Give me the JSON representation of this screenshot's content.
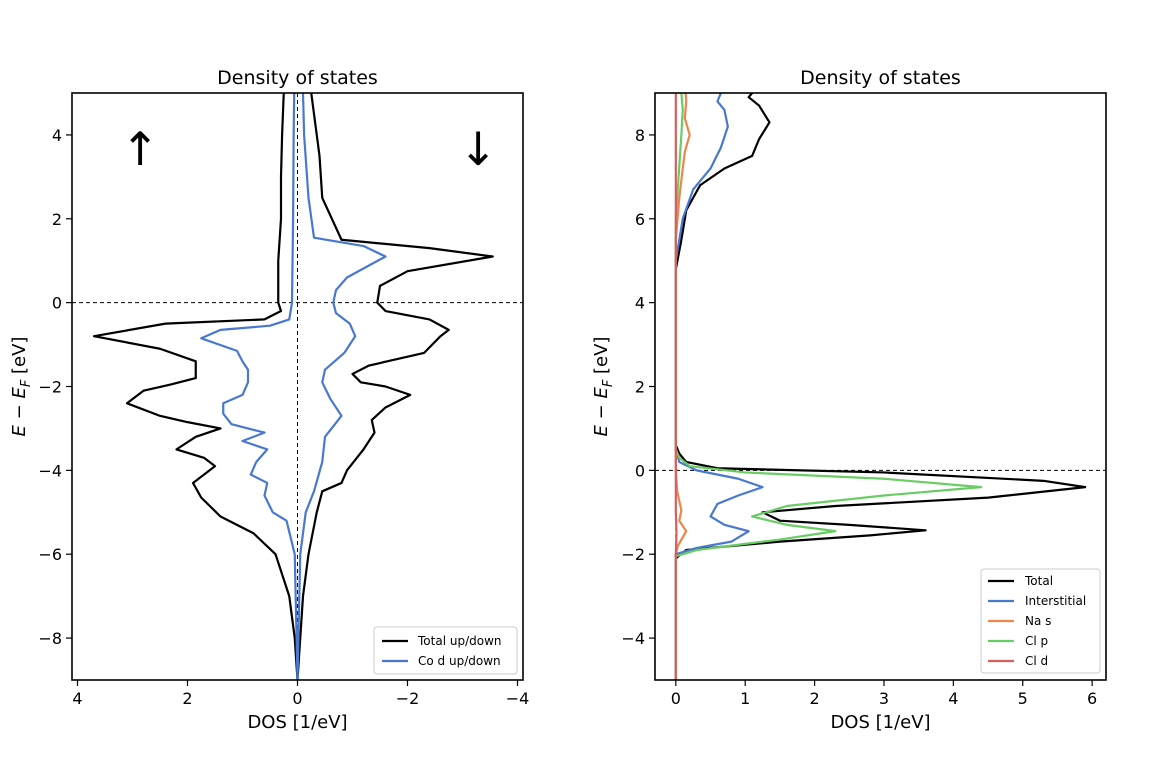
{
  "chart_data": [
    {
      "type": "line",
      "title": "Density of states",
      "xlabel": "DOS [1/eV]",
      "ylabel": "E − E_F [eV]",
      "ylabel_main": "E − E",
      "ylabel_sub": "F",
      "ylabel_tail": " [eV]",
      "xlim": [
        4.1,
        -4.1
      ],
      "ylim": [
        -9,
        5
      ],
      "xticks": [
        4,
        2,
        0,
        -2,
        -4
      ],
      "xtick_labels": [
        "4",
        "2",
        "0",
        "−2",
        "−4"
      ],
      "yticks": [
        -8,
        -6,
        -4,
        -2,
        0,
        2,
        4
      ],
      "ytick_labels": [
        "−8",
        "−6",
        "−4",
        "−2",
        "0",
        "2",
        "4"
      ],
      "annotations": {
        "up": "↑",
        "down": "↓"
      },
      "legend_position": "lower-right",
      "series": [
        {
          "name": "Total up/down",
          "color": "#000000",
          "up": [
            [
              0.0,
              -9.0
            ],
            [
              0.05,
              -8.0
            ],
            [
              0.15,
              -7.0
            ],
            [
              0.4,
              -6.0
            ],
            [
              0.8,
              -5.5
            ],
            [
              1.4,
              -5.1
            ],
            [
              1.75,
              -4.65
            ],
            [
              1.9,
              -4.3
            ],
            [
              1.65,
              -4.05
            ],
            [
              1.5,
              -3.9
            ],
            [
              1.7,
              -3.7
            ],
            [
              2.2,
              -3.5
            ],
            [
              1.85,
              -3.2
            ],
            [
              1.4,
              -3.0
            ],
            [
              2.0,
              -2.85
            ],
            [
              2.5,
              -2.7
            ],
            [
              3.1,
              -2.4
            ],
            [
              2.8,
              -2.1
            ],
            [
              2.3,
              -1.95
            ],
            [
              1.85,
              -1.8
            ],
            [
              1.85,
              -1.4
            ],
            [
              2.5,
              -1.1
            ],
            [
              3.7,
              -0.8
            ],
            [
              2.4,
              -0.5
            ],
            [
              0.6,
              -0.4
            ],
            [
              0.3,
              -0.2
            ],
            [
              0.35,
              0.0
            ],
            [
              0.35,
              1.0
            ],
            [
              0.3,
              2.0
            ],
            [
              0.3,
              3.0
            ],
            [
              0.28,
              4.0
            ],
            [
              0.25,
              5.0
            ]
          ],
          "down": [
            [
              0.0,
              -9.0
            ],
            [
              -0.05,
              -8.0
            ],
            [
              -0.1,
              -7.0
            ],
            [
              -0.2,
              -6.0
            ],
            [
              -0.35,
              -5.0
            ],
            [
              -0.45,
              -4.5
            ],
            [
              -0.8,
              -4.3
            ],
            [
              -0.9,
              -4.0
            ],
            [
              -1.2,
              -3.5
            ],
            [
              -1.4,
              -3.1
            ],
            [
              -1.35,
              -2.8
            ],
            [
              -1.6,
              -2.5
            ],
            [
              -2.05,
              -2.2
            ],
            [
              -1.6,
              -2.0
            ],
            [
              -1.15,
              -1.9
            ],
            [
              -1.0,
              -1.7
            ],
            [
              -1.3,
              -1.5
            ],
            [
              -2.3,
              -1.2
            ],
            [
              -2.6,
              -0.8
            ],
            [
              -2.75,
              -0.65
            ],
            [
              -2.4,
              -0.4
            ],
            [
              -1.6,
              -0.2
            ],
            [
              -1.45,
              0.0
            ],
            [
              -1.5,
              0.4
            ],
            [
              -2.0,
              0.75
            ],
            [
              -3.55,
              1.1
            ],
            [
              -2.4,
              1.3
            ],
            [
              -0.8,
              1.5
            ],
            [
              -0.45,
              2.5
            ],
            [
              -0.4,
              3.5
            ],
            [
              -0.3,
              4.5
            ],
            [
              -0.25,
              5.0
            ]
          ]
        },
        {
          "name": "Co d up/down",
          "color": "#4878cf",
          "up": [
            [
              0.0,
              -9.0
            ],
            [
              0.05,
              -6.0
            ],
            [
              0.2,
              -5.2
            ],
            [
              0.45,
              -5.0
            ],
            [
              0.6,
              -4.6
            ],
            [
              0.55,
              -4.3
            ],
            [
              0.85,
              -4.1
            ],
            [
              0.75,
              -3.8
            ],
            [
              0.55,
              -3.5
            ],
            [
              1.0,
              -3.3
            ],
            [
              0.6,
              -3.1
            ],
            [
              1.2,
              -2.9
            ],
            [
              1.35,
              -2.65
            ],
            [
              1.35,
              -2.4
            ],
            [
              1.0,
              -2.2
            ],
            [
              0.9,
              -1.9
            ],
            [
              0.9,
              -1.6
            ],
            [
              1.0,
              -1.4
            ],
            [
              1.1,
              -1.15
            ],
            [
              1.75,
              -0.85
            ],
            [
              1.4,
              -0.65
            ],
            [
              0.5,
              -0.55
            ],
            [
              0.15,
              -0.4
            ],
            [
              0.1,
              0.0
            ],
            [
              0.08,
              2.0
            ],
            [
              0.07,
              4.0
            ],
            [
              0.06,
              5.0
            ]
          ],
          "down": [
            [
              0.0,
              -9.0
            ],
            [
              -0.05,
              -6.0
            ],
            [
              -0.15,
              -5.0
            ],
            [
              -0.3,
              -4.5
            ],
            [
              -0.45,
              -3.8
            ],
            [
              -0.5,
              -3.2
            ],
            [
              -0.8,
              -2.7
            ],
            [
              -0.6,
              -2.3
            ],
            [
              -0.45,
              -1.9
            ],
            [
              -0.5,
              -1.6
            ],
            [
              -0.85,
              -1.2
            ],
            [
              -1.05,
              -0.8
            ],
            [
              -0.95,
              -0.5
            ],
            [
              -0.7,
              -0.25
            ],
            [
              -0.65,
              0.0
            ],
            [
              -0.7,
              0.3
            ],
            [
              -0.9,
              0.6
            ],
            [
              -1.6,
              1.1
            ],
            [
              -1.2,
              1.35
            ],
            [
              -0.3,
              1.55
            ],
            [
              -0.2,
              2.5
            ],
            [
              -0.12,
              4.0
            ],
            [
              -0.1,
              5.0
            ]
          ]
        }
      ]
    },
    {
      "type": "line",
      "title": "Density of states",
      "xlabel": "DOS [1/eV]",
      "ylabel": "E − E_F [eV]",
      "ylabel_main": "E − E",
      "ylabel_sub": "F",
      "ylabel_tail": " [eV]",
      "xlim": [
        -0.3,
        6.2
      ],
      "ylim": [
        -5,
        9
      ],
      "xticks": [
        0,
        1,
        2,
        3,
        4,
        5,
        6
      ],
      "xtick_labels": [
        "0",
        "1",
        "2",
        "3",
        "4",
        "5",
        "6"
      ],
      "yticks": [
        -4,
        -2,
        0,
        2,
        4,
        6,
        8
      ],
      "ytick_labels": [
        "−4",
        "−2",
        "0",
        "2",
        "4",
        "6",
        "8"
      ],
      "legend_position": "lower-right",
      "series": [
        {
          "name": "Total",
          "color": "#000000",
          "points": [
            [
              0.0,
              -5.0
            ],
            [
              0.0,
              -2.1
            ],
            [
              0.15,
              -1.9
            ],
            [
              1.5,
              -1.7
            ],
            [
              2.8,
              -1.55
            ],
            [
              3.6,
              -1.43
            ],
            [
              2.5,
              -1.3
            ],
            [
              1.5,
              -1.2
            ],
            [
              1.25,
              -1.0
            ],
            [
              2.3,
              -0.85
            ],
            [
              4.5,
              -0.65
            ],
            [
              5.9,
              -0.4
            ],
            [
              5.3,
              -0.25
            ],
            [
              3.0,
              -0.05
            ],
            [
              0.6,
              0.05
            ],
            [
              0.15,
              0.2
            ],
            [
              0.05,
              0.4
            ],
            [
              0.0,
              0.6
            ],
            [
              0.0,
              4.8
            ],
            [
              0.08,
              5.5
            ],
            [
              0.15,
              6.2
            ],
            [
              0.35,
              6.8
            ],
            [
              0.7,
              7.2
            ],
            [
              1.1,
              7.5
            ],
            [
              1.2,
              7.9
            ],
            [
              1.35,
              8.3
            ],
            [
              1.2,
              8.7
            ],
            [
              1.05,
              8.9
            ],
            [
              1.1,
              9.0
            ]
          ]
        },
        {
          "name": "Interstitial",
          "color": "#4878cf",
          "points": [
            [
              0.0,
              -5.0
            ],
            [
              0.0,
              -2.0
            ],
            [
              0.3,
              -1.85
            ],
            [
              0.8,
              -1.7
            ],
            [
              1.05,
              -1.45
            ],
            [
              0.7,
              -1.3
            ],
            [
              0.5,
              -1.1
            ],
            [
              0.6,
              -0.8
            ],
            [
              0.9,
              -0.6
            ],
            [
              1.25,
              -0.4
            ],
            [
              0.9,
              -0.2
            ],
            [
              0.3,
              0.0
            ],
            [
              0.05,
              0.2
            ],
            [
              0.0,
              0.5
            ],
            [
              0.0,
              5.0
            ],
            [
              0.1,
              6.0
            ],
            [
              0.25,
              6.7
            ],
            [
              0.5,
              7.2
            ],
            [
              0.65,
              7.7
            ],
            [
              0.75,
              8.2
            ],
            [
              0.7,
              8.6
            ],
            [
              0.6,
              8.8
            ],
            [
              0.65,
              9.0
            ]
          ]
        },
        {
          "name": "Na s",
          "color": "#ee854a",
          "points": [
            [
              0.0,
              -5.0
            ],
            [
              0.0,
              -2.0
            ],
            [
              0.03,
              -1.8
            ],
            [
              0.15,
              -1.45
            ],
            [
              0.05,
              -1.2
            ],
            [
              0.08,
              -0.95
            ],
            [
              0.02,
              -0.5
            ],
            [
              0.0,
              0.0
            ],
            [
              0.0,
              5.5
            ],
            [
              0.05,
              6.5
            ],
            [
              0.1,
              7.2
            ],
            [
              0.13,
              7.6
            ],
            [
              0.2,
              8.0
            ],
            [
              0.13,
              8.4
            ],
            [
              0.15,
              8.8
            ],
            [
              0.14,
              9.0
            ]
          ]
        },
        {
          "name": "Cl p",
          "color": "#6acc64",
          "points": [
            [
              0.0,
              -5.0
            ],
            [
              0.0,
              -2.05
            ],
            [
              0.3,
              -1.9
            ],
            [
              1.5,
              -1.65
            ],
            [
              2.3,
              -1.45
            ],
            [
              1.6,
              -1.3
            ],
            [
              1.1,
              -1.1
            ],
            [
              1.6,
              -0.85
            ],
            [
              3.0,
              -0.6
            ],
            [
              4.4,
              -0.4
            ],
            [
              3.0,
              -0.2
            ],
            [
              1.0,
              -0.05
            ],
            [
              0.2,
              0.1
            ],
            [
              0.05,
              0.3
            ],
            [
              0.0,
              0.5
            ],
            [
              0.0,
              6.0
            ],
            [
              0.04,
              7.0
            ],
            [
              0.08,
              8.0
            ],
            [
              0.1,
              8.6
            ],
            [
              0.08,
              9.0
            ]
          ]
        },
        {
          "name": "Cl d",
          "color": "#d65f5f",
          "points": [
            [
              0.0,
              -5.0
            ],
            [
              0.0,
              -2.0
            ],
            [
              0.01,
              -1.5
            ],
            [
              0.0,
              -1.0
            ],
            [
              0.0,
              9.0
            ]
          ]
        }
      ]
    }
  ]
}
